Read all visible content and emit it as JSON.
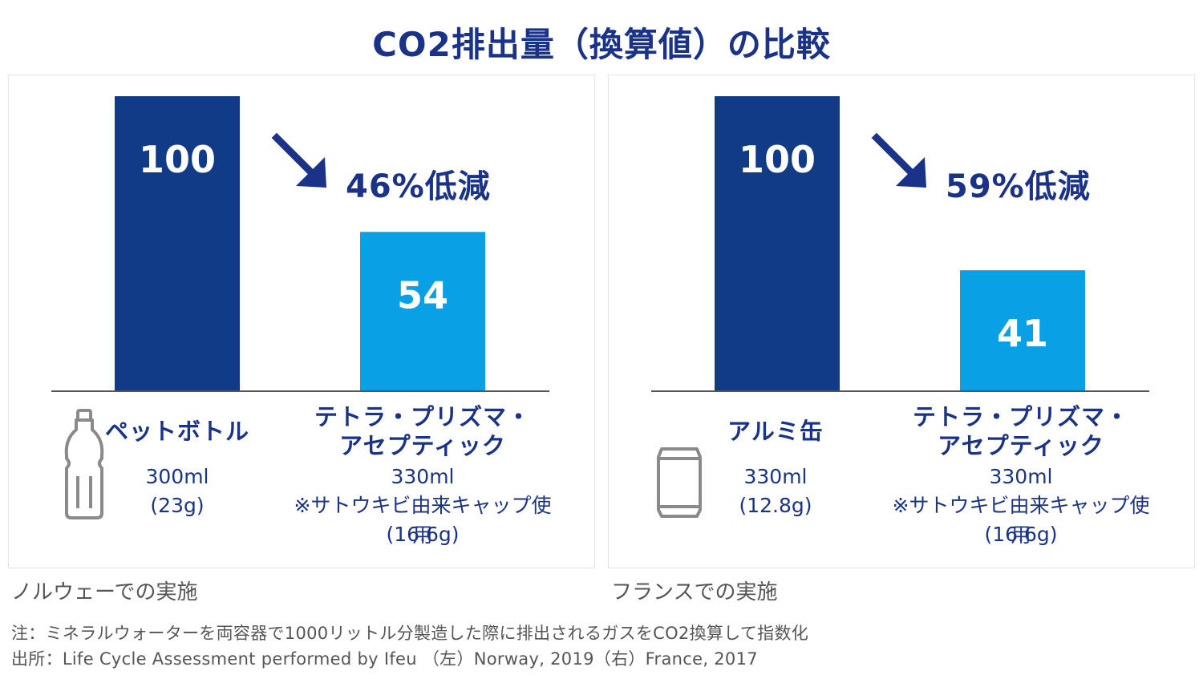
{
  "title": "CO2排出量（換算値）の比較",
  "colors": {
    "dark_bar": "#123b87",
    "light_bar": "#0aa0e6",
    "text": "#1a3388",
    "baseline": "#555555"
  },
  "chart_data": [
    {
      "type": "bar",
      "caption": "ノルウェーでの実施",
      "ylim": [
        0,
        100
      ],
      "categories": [
        "ペットボトル",
        "テトラ・プリズマ・アセプティック"
      ],
      "values": [
        100,
        54
      ],
      "value_labels": [
        "100",
        "54"
      ],
      "bar_colors": [
        "#123b87",
        "#0aa0e6"
      ],
      "reduction_label": "46%低減",
      "category_labels": [
        {
          "lines": [
            "ペットボトル"
          ],
          "details": [
            "300ml",
            "(23g)"
          ],
          "icon": "pet-bottle-icon"
        },
        {
          "lines": [
            "テトラ・プリズマ・",
            "アセプティック"
          ],
          "details": [
            "330ml",
            "※サトウキビ由来キャップ使用",
            "(16.6g)"
          ]
        }
      ]
    },
    {
      "type": "bar",
      "caption": "フランスでの実施",
      "ylim": [
        0,
        100
      ],
      "categories": [
        "アルミ缶",
        "テトラ・プリズマ・アセプティック"
      ],
      "values": [
        100,
        41
      ],
      "value_labels": [
        "100",
        "41"
      ],
      "bar_colors": [
        "#123b87",
        "#0aa0e6"
      ],
      "reduction_label": "59%低減",
      "category_labels": [
        {
          "lines": [
            "アルミ缶"
          ],
          "details": [
            "330ml",
            "(12.8g)"
          ],
          "icon": "aluminum-can-icon"
        },
        {
          "lines": [
            "テトラ・プリズマ・",
            "アセプティック"
          ],
          "details": [
            "330ml",
            "※サトウキビ由来キャップ使用",
            "(16.6g)"
          ]
        }
      ]
    }
  ],
  "notes": [
    "注：ミネラルウォーターを両容器で1000リットル分製造した際に排出されるガスをCO2換算して指数化",
    "出所：Life Cycle Assessment performed by Ifeu （左）Norway, 2019（右）France, 2017"
  ]
}
